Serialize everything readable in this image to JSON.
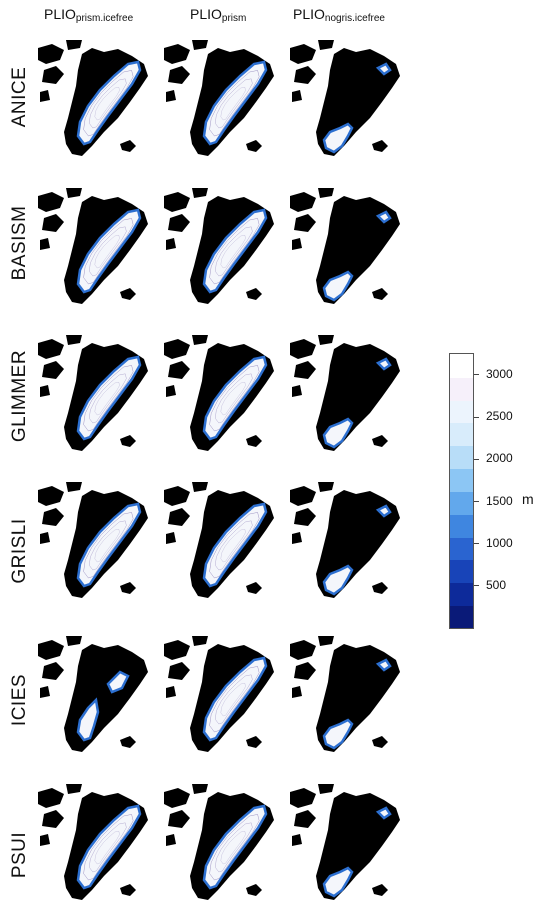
{
  "columns": [
    {
      "base": "PLIO",
      "sub": "prism.icefree"
    },
    {
      "base": "PLIO",
      "sub": "prism"
    },
    {
      "base": "PLIO",
      "sub": "nogris.icefree"
    }
  ],
  "rows": [
    "ANICE",
    "BASISM",
    "GLIMMER",
    "GRISLI",
    "ICIES",
    "PSUI"
  ],
  "ice_cover": [
    [
      "full",
      "full",
      "south"
    ],
    [
      "full",
      "full",
      "south-patchy"
    ],
    [
      "full",
      "full",
      "south"
    ],
    [
      "full",
      "full",
      "south"
    ],
    [
      "partial",
      "full",
      "south"
    ],
    [
      "full",
      "full",
      "south-patchy"
    ]
  ],
  "colorbar": {
    "unit": "m",
    "ticks": [
      "500",
      "1000",
      "1500",
      "2000",
      "2500",
      "3000"
    ],
    "range": [
      0,
      3250
    ],
    "colors": [
      "#0a1a78",
      "#0d2a9a",
      "#1844b8",
      "#2a64d0",
      "#3f86e0",
      "#62a8ec",
      "#8cc6f4",
      "#b8ddf8",
      "#d8ecfb",
      "#ecf4fd",
      "#f6f0fa",
      "#ffffff"
    ]
  },
  "colors": {
    "land": "#000000",
    "ice_edge": "#2c6fd0",
    "contour": "#9a8fc0"
  }
}
